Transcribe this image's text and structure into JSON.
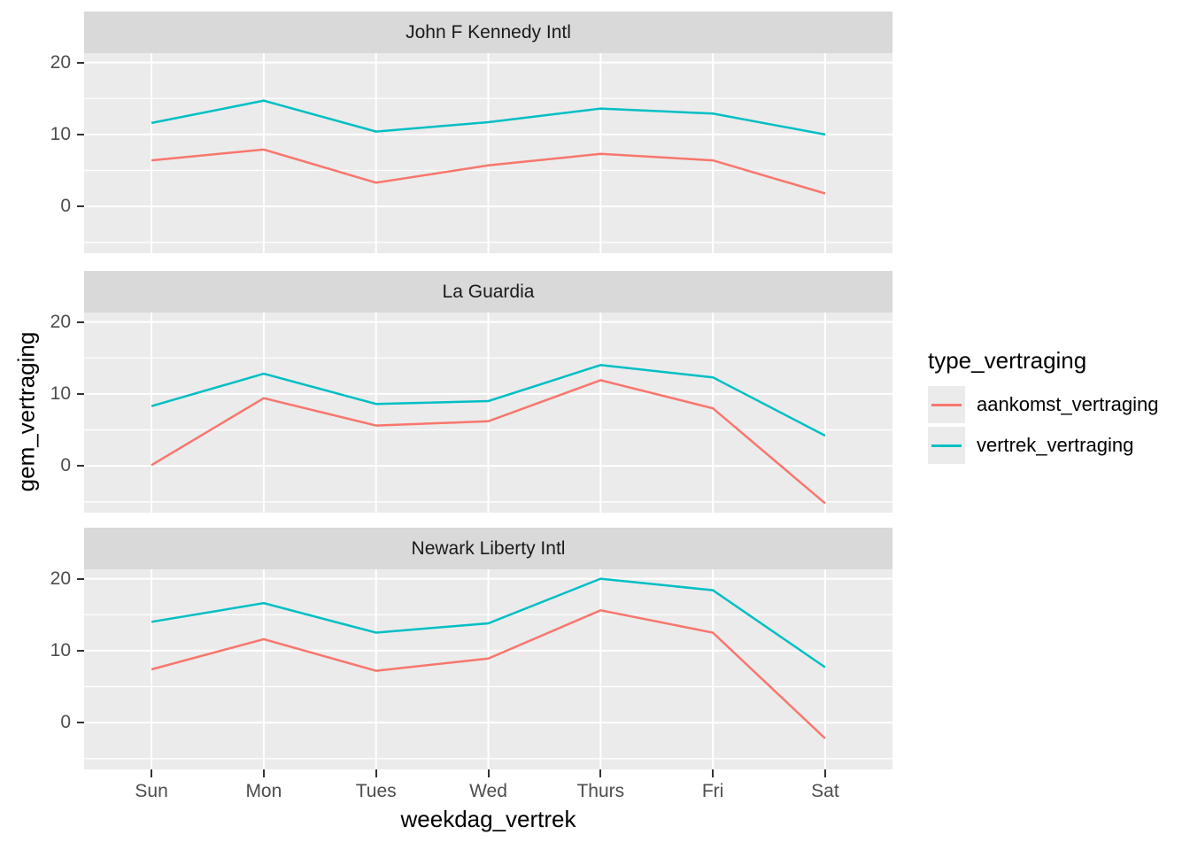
{
  "figure": {
    "xlabel": "weekdag_vertrek",
    "ylabel": "gem_vertraging"
  },
  "legend": {
    "title": "type_vertraging",
    "items": [
      {
        "label": "aankomst_vertraging",
        "color": "#F8766D"
      },
      {
        "label": "vertrek_vertraging",
        "color": "#00BFC4"
      }
    ]
  },
  "chart_data": {
    "type": "line",
    "title": "",
    "xlabel": "weekdag_vertrek",
    "ylabel": "gem_vertraging",
    "categories": [
      "Sun",
      "Mon",
      "Tues",
      "Wed",
      "Thurs",
      "Fri",
      "Sat"
    ],
    "facets": [
      {
        "title": "John F Kennedy Intl",
        "series": [
          {
            "name": "aankomst_vertraging",
            "color": "#F8766D",
            "values": [
              6.4,
              7.9,
              3.3,
              5.7,
              7.3,
              6.4,
              1.8
            ]
          },
          {
            "name": "vertrek_vertraging",
            "color": "#00BFC4",
            "values": [
              11.6,
              14.7,
              10.4,
              11.7,
              13.6,
              12.9,
              10.0
            ]
          }
        ]
      },
      {
        "title": "La Guardia",
        "series": [
          {
            "name": "aankomst_vertraging",
            "color": "#F8766D",
            "values": [
              0.1,
              9.4,
              5.6,
              6.2,
              11.9,
              8.0,
              -5.2
            ]
          },
          {
            "name": "vertrek_vertraging",
            "color": "#00BFC4",
            "values": [
              8.3,
              12.8,
              8.6,
              9.0,
              14.0,
              12.3,
              4.2
            ]
          }
        ]
      },
      {
        "title": "Newark Liberty Intl",
        "series": [
          {
            "name": "aankomst_vertraging",
            "color": "#F8766D",
            "values": [
              7.4,
              11.6,
              7.2,
              8.9,
              15.6,
              12.5,
              -2.2
            ]
          },
          {
            "name": "vertrek_vertraging",
            "color": "#00BFC4",
            "values": [
              14.0,
              16.6,
              12.5,
              13.8,
              20.0,
              18.4,
              7.7
            ]
          }
        ]
      }
    ],
    "ylim": [
      -6.5,
      21.3
    ],
    "yticks": [
      0,
      10,
      20
    ],
    "yticks_minor": [
      -5,
      5,
      15
    ],
    "grid": true,
    "legend_position": "right",
    "theme": {
      "panel_bg": "#EBEBEB",
      "strip_bg": "#D9D9D9",
      "grid_color": "#FFFFFF",
      "tick_color": "#333333",
      "tick_label_color": "#4D4D4D"
    }
  }
}
